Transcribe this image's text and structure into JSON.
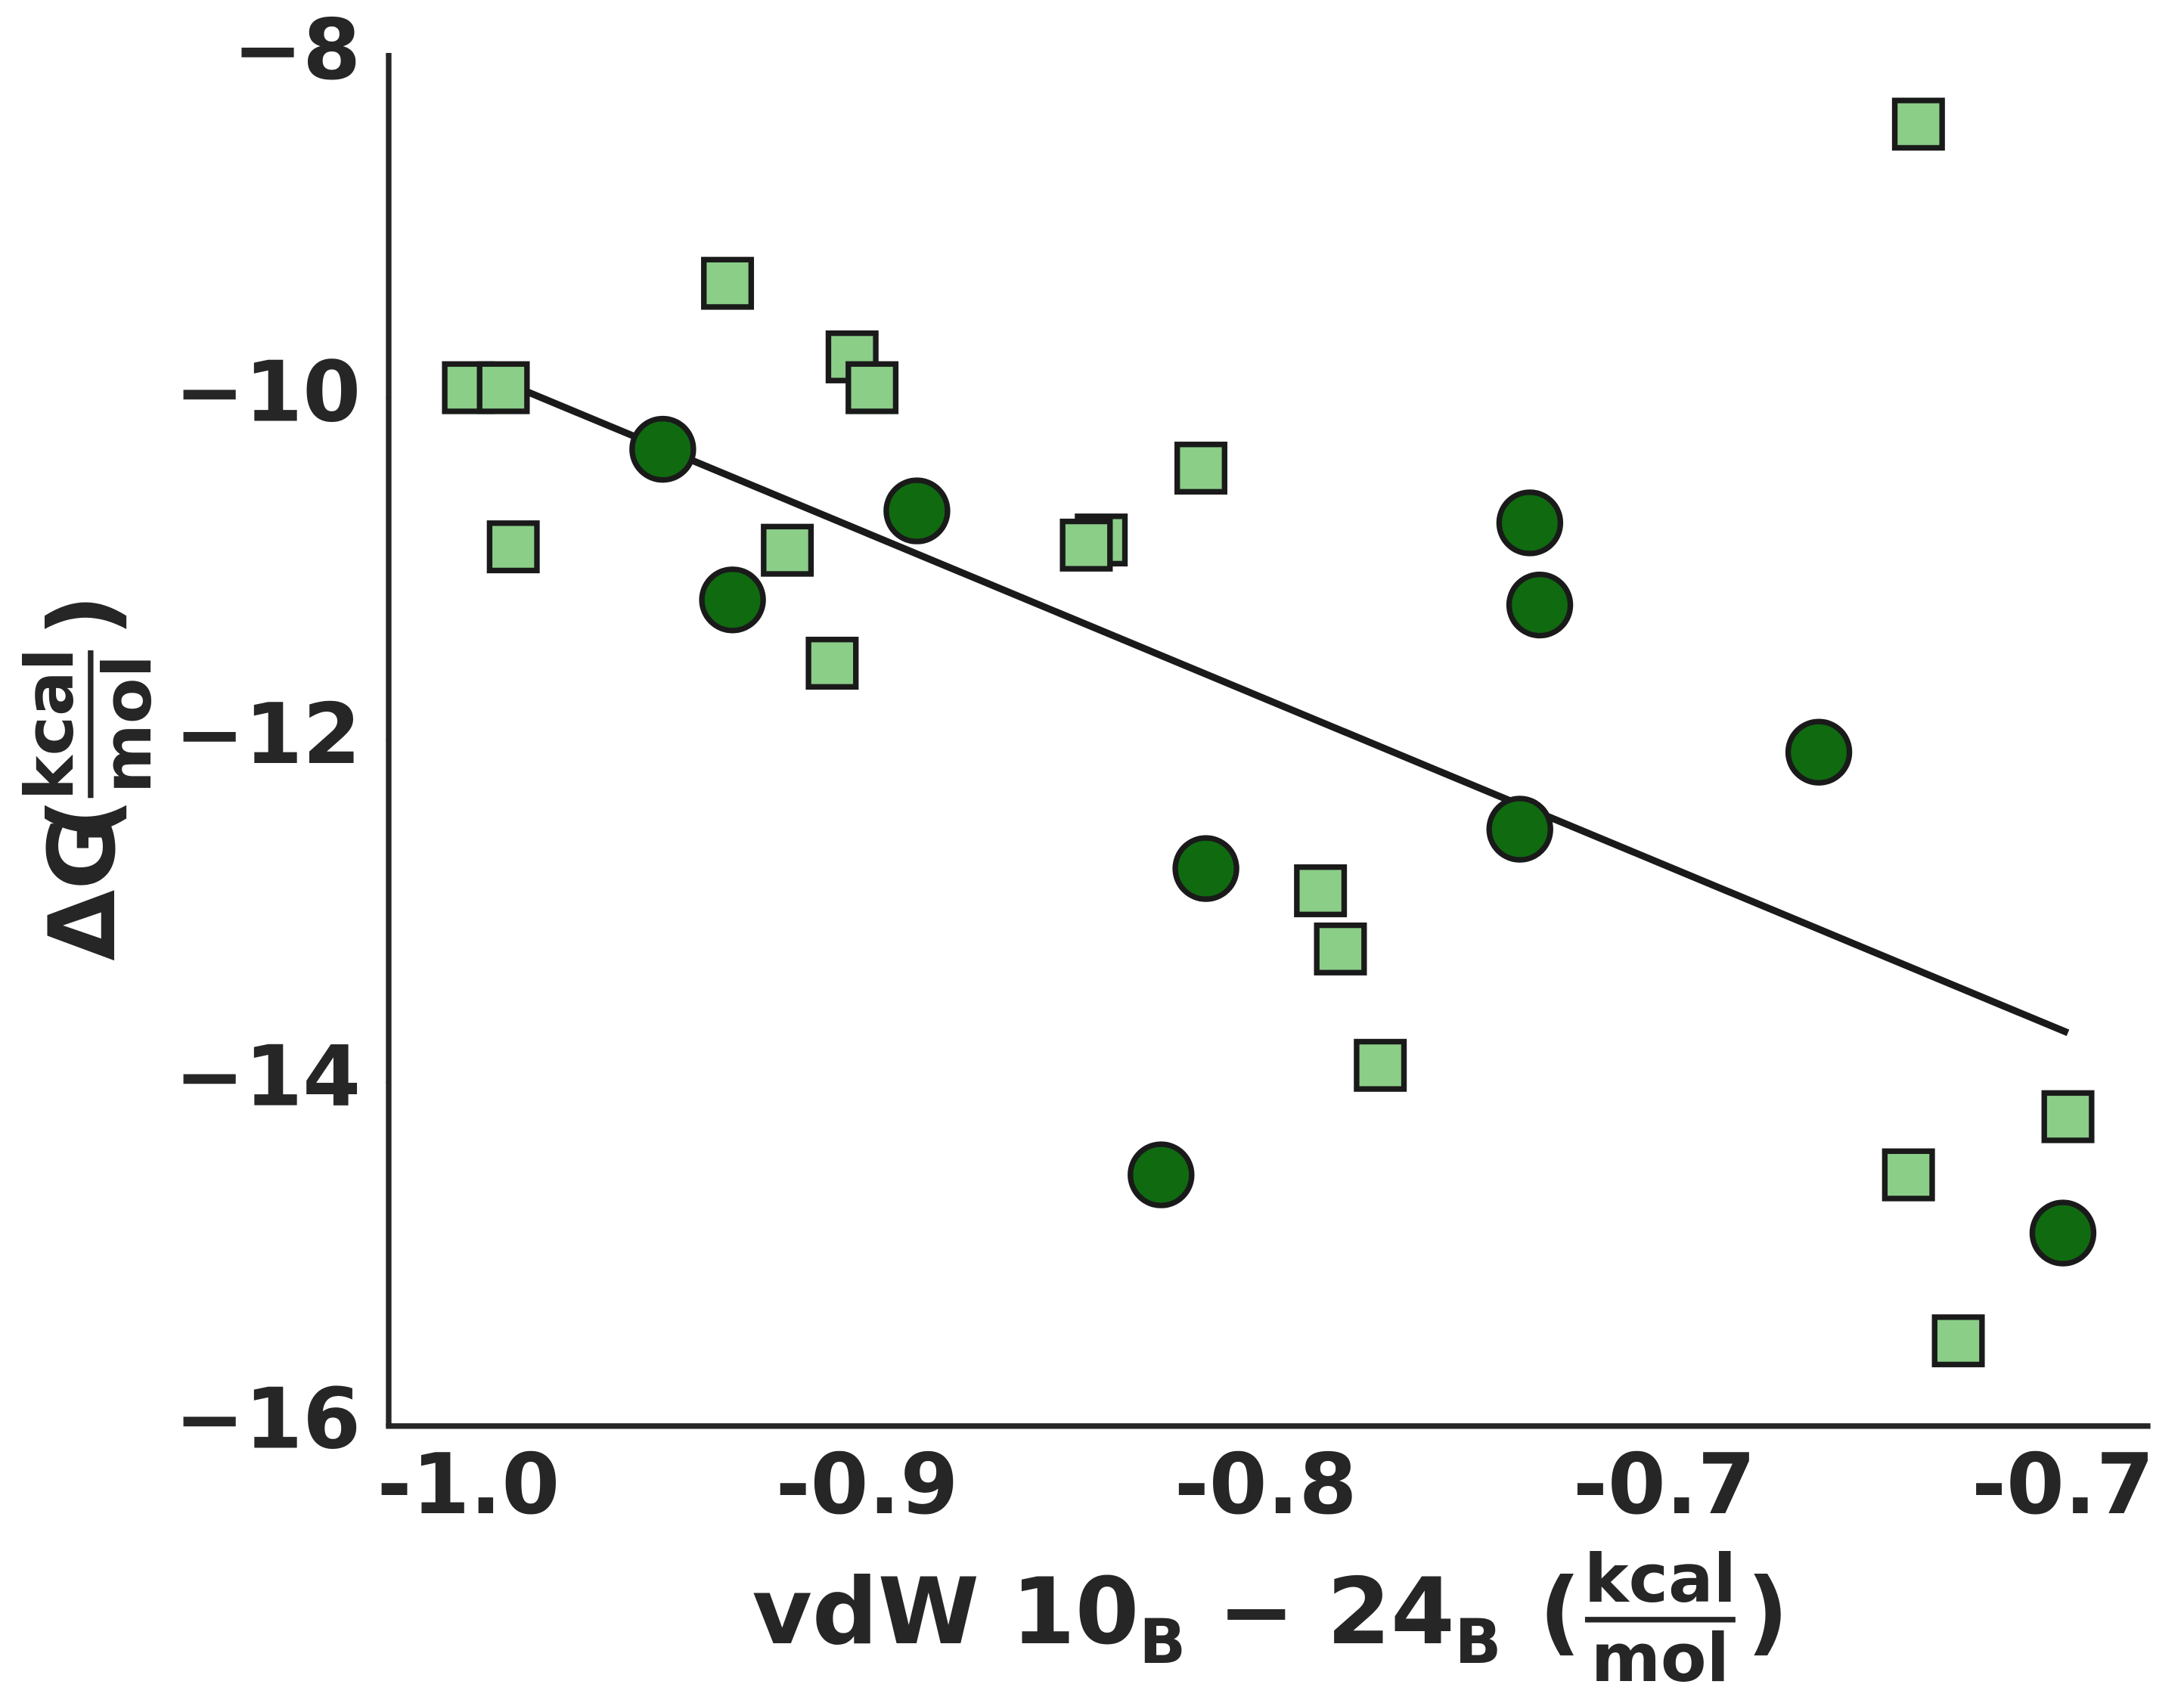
{
  "chart_data": {
    "type": "scatter",
    "xlabel": {
      "parts": [
        "vdW 10",
        "B",
        " − 24",
        "B"
      ],
      "unit": {
        "numerator": "kcal",
        "denominator": "mol"
      }
    },
    "ylabel": {
      "text": "ΔG",
      "unit": {
        "numerator": "kcal",
        "denominator": "mol"
      }
    },
    "xlim": [
      -0.986,
      -0.633
    ],
    "ylim": [
      -16,
      -8
    ],
    "xticks": [
      {
        "value": -0.97,
        "label": "-1.0"
      },
      {
        "value": -0.89,
        "label": "-0.9"
      },
      {
        "value": -0.81,
        "label": "-0.8"
      },
      {
        "value": -0.73,
        "label": "-0.7"
      },
      {
        "value": -0.65,
        "label": "-0.7"
      }
    ],
    "yticks": [
      {
        "value": -16,
        "label": "−16"
      },
      {
        "value": -14,
        "label": "−14"
      },
      {
        "value": -12,
        "label": "−12"
      },
      {
        "value": -10,
        "label": "−10"
      },
      {
        "value": -8,
        "label": "−8"
      }
    ],
    "grid": false,
    "series": [
      {
        "marker": "square",
        "color": "#8ace88",
        "x": [
          -0.97,
          -0.963,
          -0.961,
          -0.918,
          -0.893,
          -0.889,
          -0.906,
          -0.897,
          -0.843,
          -0.846,
          -0.823,
          -0.799,
          -0.795,
          -0.787,
          -0.679,
          -0.681,
          -0.649,
          -0.671
        ],
        "values": [
          -9.94,
          -9.94,
          -10.87,
          -9.33,
          -9.76,
          -9.94,
          -10.89,
          -11.55,
          -10.83,
          -10.86,
          -10.41,
          -12.88,
          -13.22,
          -13.9,
          -8.4,
          -14.54,
          -14.2,
          -15.51
        ]
      },
      {
        "marker": "circle",
        "color": "#106a10",
        "x": [
          -0.931,
          -0.917,
          -0.88,
          -0.822,
          -0.831,
          -0.757,
          -0.755,
          -0.759,
          -0.699,
          -0.65
        ],
        "values": [
          -10.3,
          -11.18,
          -10.66,
          -12.75,
          -14.54,
          -10.73,
          -11.21,
          -12.52,
          -12.07,
          -14.88
        ]
      }
    ],
    "fit": {
      "color": "#1a1a1a",
      "x": [
        -0.961,
        -0.649
      ],
      "y": [
        -9.93,
        -13.71
      ]
    }
  }
}
